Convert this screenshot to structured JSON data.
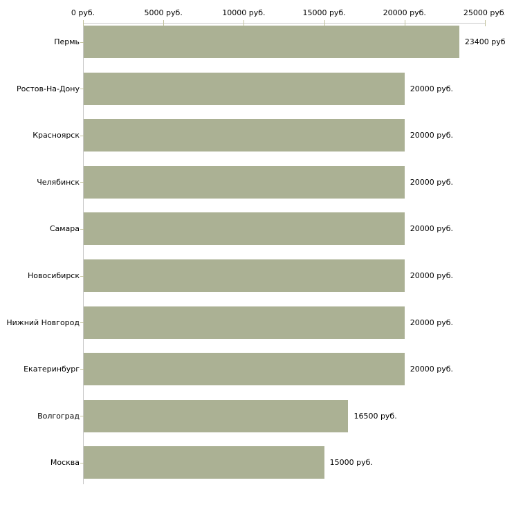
{
  "chart_data": {
    "type": "bar",
    "orientation": "horizontal",
    "title": "",
    "unit": "руб.",
    "categories": [
      "Пермь",
      "Ростов-На-Дону",
      "Красноярск",
      "Челябинск",
      "Самара",
      "Новосибирск",
      "Нижний Новгород",
      "Екатеринбург",
      "Волгоград",
      "Москва"
    ],
    "values": [
      23400,
      20000,
      20000,
      20000,
      20000,
      20000,
      20000,
      20000,
      16500,
      15000
    ],
    "value_labels": [
      "23400 руб.",
      "20000 руб.",
      "20000 руб.",
      "20000 руб.",
      "20000 руб.",
      "20000 руб.",
      "20000 руб.",
      "20000 руб.",
      "16500 руб.",
      "15000 руб."
    ],
    "x_axis": {
      "min": 0,
      "max": 25000,
      "tick_values": [
        0,
        5000,
        10000,
        15000,
        20000,
        25000
      ],
      "tick_labels": [
        "0 руб.",
        "5000 руб.",
        "10000 руб.",
        "15000 руб.",
        "20000 руб.",
        "25000 руб."
      ],
      "position": "top"
    },
    "colors": {
      "bar": "#abb194",
      "axis_line": "#c8c8c8",
      "tick_mark": "#c2c29c",
      "text": "#000000",
      "background": "#ffffff"
    },
    "legend": "none",
    "grid": "off"
  }
}
